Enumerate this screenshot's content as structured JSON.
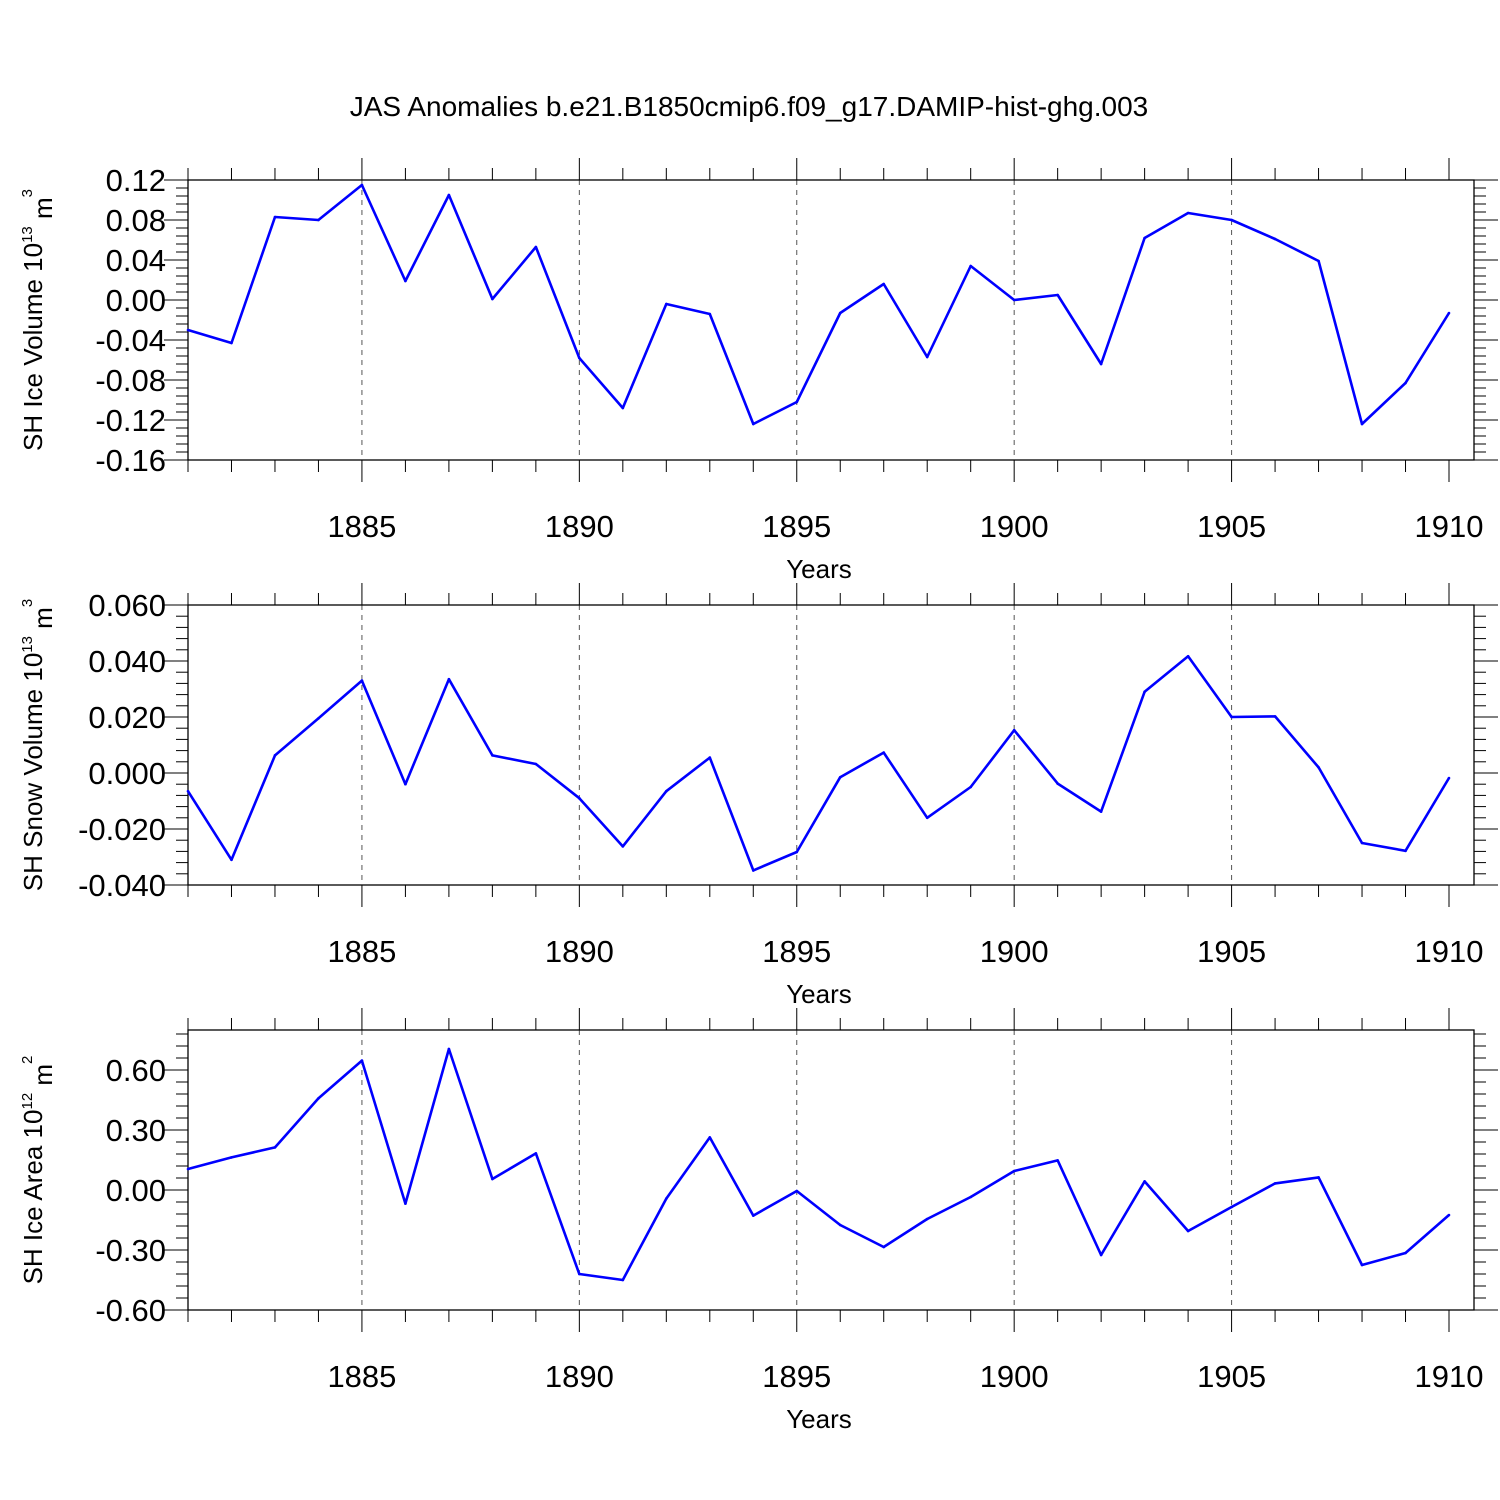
{
  "figure": {
    "title": "JAS Anomalies b.e21.B1850cmip6.f09_g17.DAMIP-hist-ghg.003"
  },
  "chart_data": [
    {
      "type": "line",
      "xlabel": "Years",
      "ylabel_main": "SH Ice Volume 10",
      "ylabel_exp": "13",
      "ylabel_unit": " m",
      "ylabel_unit_exp": "3",
      "xlim": [
        1881,
        1910
      ],
      "ylim": [
        -0.16,
        0.12
      ],
      "x_ticks": [
        "1885",
        "1890",
        "1895",
        "1900",
        "1905",
        "1910"
      ],
      "y_ticks": [
        "0.12",
        "0.08",
        "0.04",
        "0.00",
        "-0.04",
        "-0.08",
        "-0.12",
        "-0.16"
      ],
      "grid": "dashed vertical at 1885, 1890, 1895, 1900, 1905",
      "color": "#0000ff",
      "x": [
        1881,
        1882,
        1883,
        1884,
        1885,
        1886,
        1887,
        1888,
        1889,
        1890,
        1891,
        1892,
        1893,
        1894,
        1895,
        1896,
        1897,
        1898,
        1899,
        1900,
        1901,
        1902,
        1903,
        1904,
        1905,
        1906,
        1907,
        1908,
        1909,
        1910
      ],
      "y": [
        -0.03,
        -0.043,
        0.083,
        0.08,
        0.115,
        0.019,
        0.105,
        0.001,
        0.053,
        -0.058,
        -0.108,
        -0.004,
        -0.014,
        -0.124,
        -0.102,
        -0.013,
        0.016,
        -0.057,
        0.034,
        0.0,
        0.005,
        -0.064,
        0.062,
        0.087,
        0.08,
        0.061,
        0.039,
        -0.124,
        -0.083,
        -0.013
      ]
    },
    {
      "type": "line",
      "xlabel": "Years",
      "ylabel_main": "SH Snow Volume 10",
      "ylabel_exp": "13",
      "ylabel_unit": " m",
      "ylabel_unit_exp": "3",
      "xlim": [
        1881,
        1910
      ],
      "ylim": [
        -0.04,
        0.06
      ],
      "x_ticks": [
        "1885",
        "1890",
        "1895",
        "1900",
        "1905",
        "1910"
      ],
      "y_ticks": [
        "0.060",
        "0.040",
        "0.020",
        "0.000",
        "-0.020",
        "-0.040"
      ],
      "grid": "dashed vertical at 1885, 1890, 1895, 1900, 1905",
      "color": "#0000ff",
      "x": [
        1881,
        1882,
        1883,
        1884,
        1885,
        1886,
        1887,
        1888,
        1889,
        1890,
        1891,
        1892,
        1893,
        1894,
        1895,
        1896,
        1897,
        1898,
        1899,
        1900,
        1901,
        1902,
        1903,
        1904,
        1905,
        1906,
        1907,
        1908,
        1909,
        1910
      ],
      "y": [
        -0.0065,
        -0.031,
        0.0063,
        0.0195,
        0.033,
        -0.004,
        0.0335,
        0.0063,
        0.0032,
        -0.009,
        -0.0262,
        -0.0065,
        0.0055,
        -0.0348,
        -0.0282,
        -0.0015,
        0.0073,
        -0.016,
        -0.005,
        0.0153,
        -0.0038,
        -0.0138,
        0.029,
        0.0417,
        0.02,
        0.0202,
        0.002,
        -0.025,
        -0.0278,
        -0.0018
      ]
    },
    {
      "type": "line",
      "xlabel": "Years",
      "ylabel_main": "SH Ice Area 10",
      "ylabel_exp": "12",
      "ylabel_unit": " m",
      "ylabel_unit_exp": "2",
      "xlim": [
        1881,
        1910
      ],
      "ylim": [
        -0.6,
        0.8
      ],
      "x_ticks": [
        "1885",
        "1890",
        "1895",
        "1900",
        "1905",
        "1910"
      ],
      "y_ticks": [
        "0.60",
        "0.30",
        "0.00",
        "-0.30",
        "-0.60"
      ],
      "grid": "dashed vertical at 1885, 1890, 1895, 1900, 1905",
      "color": "#0000ff",
      "x": [
        1881,
        1882,
        1883,
        1884,
        1885,
        1886,
        1887,
        1888,
        1889,
        1890,
        1891,
        1892,
        1893,
        1894,
        1895,
        1896,
        1897,
        1898,
        1899,
        1900,
        1901,
        1902,
        1903,
        1904,
        1905,
        1906,
        1907,
        1908,
        1909,
        1910
      ],
      "y": [
        0.105,
        0.163,
        0.213,
        0.458,
        0.647,
        -0.068,
        0.705,
        0.055,
        0.183,
        -0.42,
        -0.45,
        -0.043,
        0.263,
        -0.128,
        -0.005,
        -0.175,
        -0.285,
        -0.145,
        -0.035,
        0.095,
        0.148,
        -0.325,
        0.043,
        -0.205,
        -0.085,
        0.033,
        0.063,
        -0.375,
        -0.315,
        -0.125
      ]
    }
  ]
}
